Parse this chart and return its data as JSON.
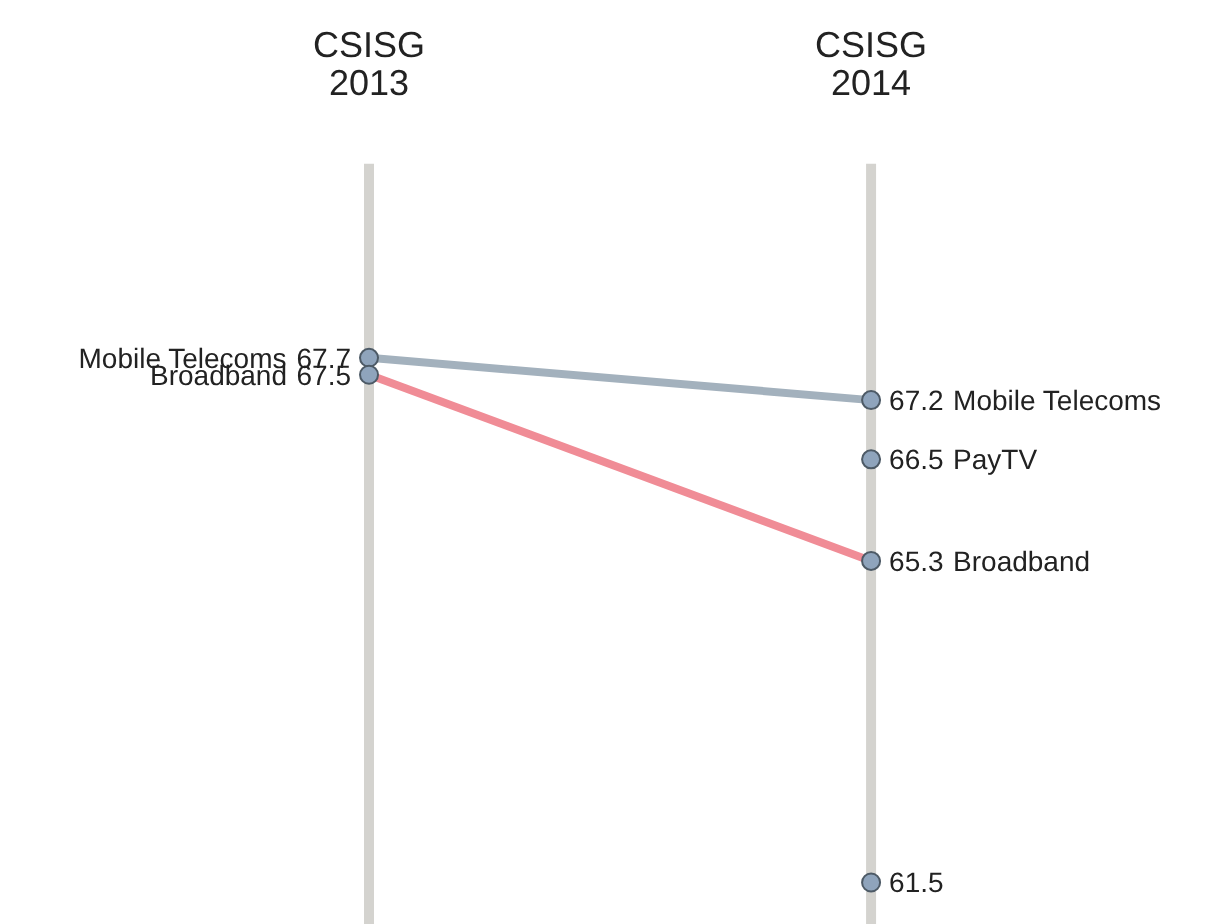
{
  "chart_data": {
    "type": "line",
    "categories": [
      "CSISG\n2013",
      "CSISG\n2014"
    ],
    "marker": "circle",
    "data_labels": true,
    "series": [
      {
        "name": "Mobile Telecoms",
        "color": "#a3b1bd",
        "values": [
          67.7,
          67.2
        ]
      },
      {
        "name": "Broadband",
        "color": "#f08c96",
        "values": [
          67.5,
          65.3
        ]
      },
      {
        "name": "PayTV",
        "color": "#8fa4bc",
        "values": [
          null,
          66.5
        ]
      },
      {
        "color": "#8fa4bc",
        "values": [
          null,
          61.5
        ]
      }
    ]
  }
}
